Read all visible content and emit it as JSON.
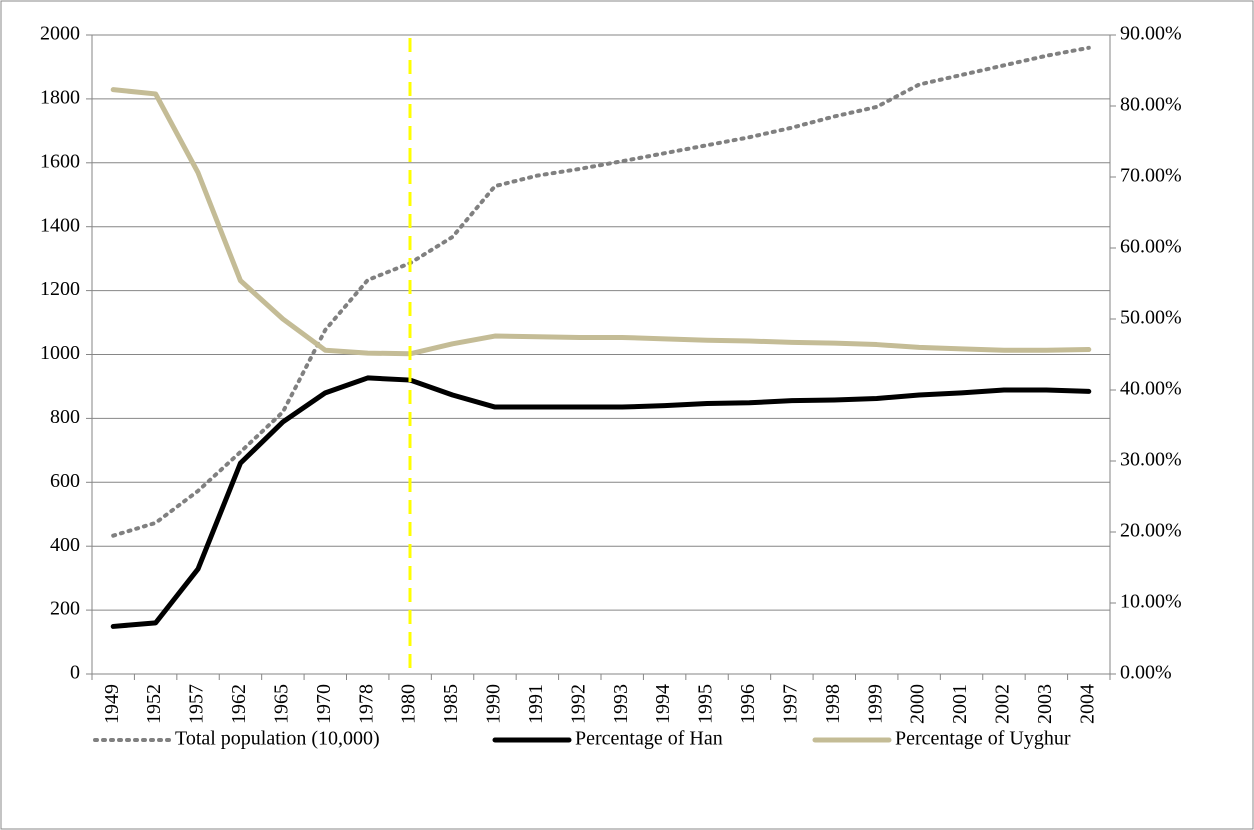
{
  "chart_data": {
    "type": "line",
    "categories": [
      "1949",
      "1952",
      "1957",
      "1962",
      "1965",
      "1970",
      "1978",
      "1980",
      "1985",
      "1990",
      "1991",
      "1992",
      "1993",
      "1994",
      "1995",
      "1996",
      "1997",
      "1998",
      "1999",
      "2000",
      "2001",
      "2002",
      "2003",
      "2004"
    ],
    "ylim": [
      0,
      2000
    ],
    "yticks": [
      0,
      200,
      400,
      600,
      800,
      1000,
      1200,
      1400,
      1600,
      1800,
      2000
    ],
    "y2lim": [
      0,
      90
    ],
    "y2ticks": [
      {
        "value": 0,
        "label": "0.00%"
      },
      {
        "value": 10,
        "label": "10.00%"
      },
      {
        "value": 20,
        "label": "20.00%"
      },
      {
        "value": 30,
        "label": "30.00%"
      },
      {
        "value": 40,
        "label": "40.00%"
      },
      {
        "value": 50,
        "label": "50.00%"
      },
      {
        "value": 60,
        "label": "60.00%"
      },
      {
        "value": 70,
        "label": "70.00%"
      },
      {
        "value": 80,
        "label": "80.00%"
      },
      {
        "value": 90,
        "label": "90.00%"
      }
    ],
    "grid": true,
    "legend": "bottom",
    "series": [
      {
        "name": "Total population (10,000)",
        "color": "#808080",
        "dash": "dotted",
        "values": [
          433,
          473,
          573,
          695,
          820,
          1077,
          1233,
          1286,
          1368,
          1527,
          1560,
          1581,
          1605,
          1630,
          1655,
          1680,
          1710,
          1745,
          1775,
          1845,
          1875,
          1905,
          1935,
          1960
        ]
      },
      {
        "name": "Percentage of Han",
        "color": "#000000",
        "axis": "y2",
        "values": [
          6.7,
          7.2,
          14.8,
          29.7,
          35.5,
          39.6,
          41.7,
          41.4,
          39.3,
          37.6,
          37.6,
          37.6,
          37.6,
          37.8,
          38.1,
          38.2,
          38.5,
          38.6,
          38.8,
          39.3,
          39.6,
          40.0,
          40.0,
          39.8
        ]
      },
      {
        "name": "Percentage of Uyghur",
        "color": "#c4bc96",
        "axis": "y2",
        "values": [
          82.3,
          81.7,
          70.6,
          55.4,
          50.0,
          45.6,
          45.2,
          45.1,
          46.5,
          47.6,
          47.5,
          47.4,
          47.4,
          47.2,
          47.0,
          46.9,
          46.7,
          46.6,
          46.4,
          46.0,
          45.8,
          45.6,
          45.6,
          45.7
        ]
      }
    ]
  }
}
